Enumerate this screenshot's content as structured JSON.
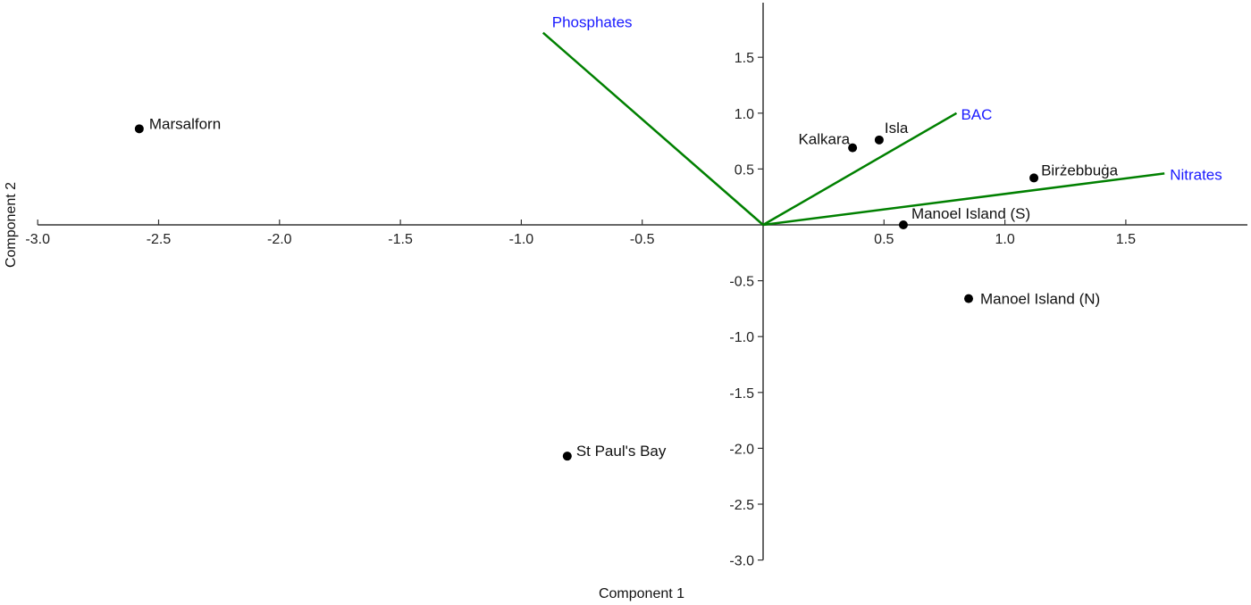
{
  "chart_data": {
    "type": "scatter",
    "subtype": "pca-biplot",
    "title": "",
    "xlabel": "Component 1",
    "ylabel": "Component 2",
    "xlim": [
      -3.0,
      2.0
    ],
    "ylim": [
      -3.0,
      2.0
    ],
    "x_ticks": [
      -3.0,
      -2.5,
      -2.0,
      -1.5,
      -1.0,
      -0.5,
      0.5,
      1.0,
      1.5
    ],
    "x_tick_labels": [
      "-3.0",
      "-2.5",
      "-2.0",
      "-1.5",
      "-1.0",
      "-0.5",
      "0.5",
      "1.0",
      "1.5"
    ],
    "y_ticks": [
      1.5,
      1.0,
      0.5,
      -0.5,
      -1.0,
      -1.5,
      -2.0,
      -2.5,
      -3.0
    ],
    "y_tick_labels": [
      "1.5",
      "1.0",
      "0.5",
      "-0.5",
      "-1.0",
      "-1.5",
      "-2.0",
      "-2.5",
      "-3.0"
    ],
    "grid": false,
    "legend": null,
    "points": [
      {
        "label": "Marsalforn",
        "x": -2.58,
        "y": 0.86
      },
      {
        "label": "Kalkara",
        "x": 0.37,
        "y": 0.69
      },
      {
        "label": "Isla",
        "x": 0.48,
        "y": 0.76
      },
      {
        "label": "Birżebbuġa",
        "x": 1.12,
        "y": 0.42
      },
      {
        "label": "Manoel Island (S)",
        "x": 0.58,
        "y": 0.0
      },
      {
        "label": "Manoel Island (N)",
        "x": 0.85,
        "y": -0.66
      },
      {
        "label": "St Paul's Bay",
        "x": -0.81,
        "y": -2.07
      }
    ],
    "vectors": [
      {
        "label": "Phosphates",
        "x": -0.91,
        "y": 1.72
      },
      {
        "label": "BAC",
        "x": 0.8,
        "y": 1.0
      },
      {
        "label": "Nitrates",
        "x": 1.66,
        "y": 0.46
      }
    ],
    "colors": {
      "vector_line": "#008000",
      "vector_label": "#1a1aff",
      "point": "#000000",
      "axis": "#333333"
    }
  }
}
